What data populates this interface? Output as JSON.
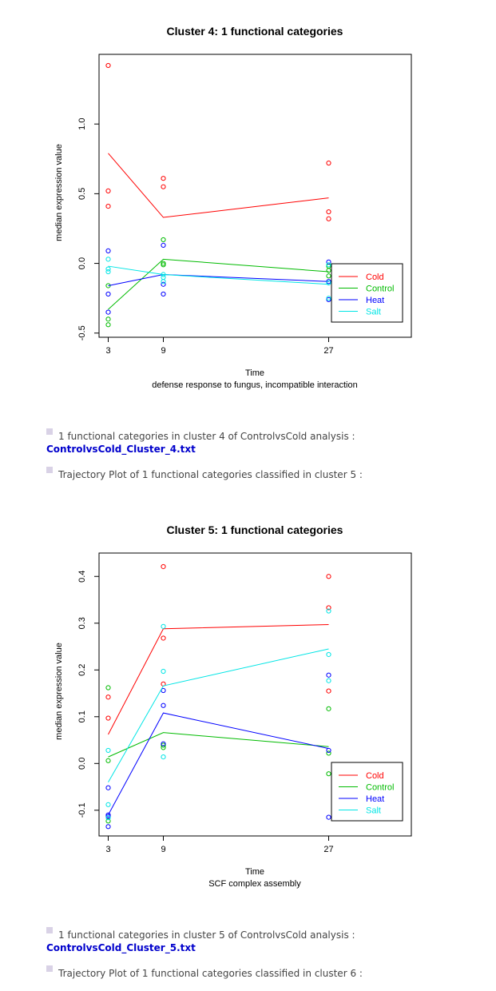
{
  "charts": [
    {
      "title": "Cluster 4: 1 functional categories",
      "xlabel": "Time",
      "subtitle": "defense response to fungus, incompatible interaction",
      "ylabel": "median expression value"
    },
    {
      "title": "Cluster 5: 1 functional categories",
      "xlabel": "Time",
      "subtitle": "SCF complex assembly",
      "ylabel": "median expression value"
    }
  ],
  "items": {
    "c4_summary": "1 functional categories in cluster 4 of ControlvsCold analysis :",
    "c4_link": "ControlvsCold_Cluster_4.txt",
    "c5_intro": "Trajectory Plot of 1 functional categories classified in cluster 5 :",
    "c5_summary": "1 functional categories in cluster 5 of ControlvsCold analysis :",
    "c5_link": "ControlvsCold_Cluster_5.txt",
    "c6_intro": "Trajectory Plot of 1 functional categories classified in cluster 6 :"
  },
  "chart_data": [
    {
      "type": "line",
      "x": [
        3,
        9,
        27
      ],
      "xticks": [
        3,
        9,
        27
      ],
      "xlim": [
        2,
        36
      ],
      "ylim": [
        -0.53,
        1.5
      ],
      "yticks": [
        -0.5,
        0.0,
        0.5,
        1.0
      ],
      "legend": "bottom-right",
      "series": [
        {
          "name": "Cold",
          "color": "#ff0000",
          "line": [
            0.79,
            0.33,
            0.47
          ],
          "points": [
            [
              3,
              1.42
            ],
            [
              3,
              0.52
            ],
            [
              3,
              0.41
            ],
            [
              9,
              0.61
            ],
            [
              9,
              0.55
            ],
            [
              27,
              0.72
            ],
            [
              27,
              0.37
            ],
            [
              27,
              0.32
            ]
          ]
        },
        {
          "name": "Control",
          "color": "#00bb00",
          "line": [
            -0.33,
            0.03,
            -0.06
          ],
          "points": [
            [
              3,
              -0.16
            ],
            [
              3,
              -0.4
            ],
            [
              3,
              -0.44
            ],
            [
              9,
              0.17
            ],
            [
              9,
              0.0
            ],
            [
              9,
              -0.01
            ],
            [
              27,
              -0.02
            ],
            [
              27,
              -0.05
            ],
            [
              27,
              -0.09
            ]
          ]
        },
        {
          "name": "Heat",
          "color": "#0000ff",
          "line": [
            -0.16,
            -0.08,
            -0.13
          ],
          "points": [
            [
              3,
              0.09
            ],
            [
              3,
              -0.22
            ],
            [
              3,
              -0.35
            ],
            [
              9,
              0.13
            ],
            [
              9,
              -0.15
            ],
            [
              9,
              -0.22
            ],
            [
              27,
              0.01
            ],
            [
              27,
              -0.13
            ],
            [
              27,
              -0.26
            ]
          ]
        },
        {
          "name": "Salt",
          "color": "#00e5e5",
          "line": [
            -0.02,
            -0.08,
            -0.15
          ],
          "points": [
            [
              3,
              0.03
            ],
            [
              3,
              -0.04
            ],
            [
              3,
              -0.06
            ],
            [
              9,
              -0.08
            ],
            [
              9,
              -0.1
            ],
            [
              9,
              -0.13
            ],
            [
              27,
              -0.01
            ],
            [
              27,
              -0.14
            ],
            [
              27,
              -0.25
            ]
          ]
        }
      ]
    },
    {
      "type": "line",
      "x": [
        3,
        9,
        27
      ],
      "xticks": [
        3,
        9,
        27
      ],
      "xlim": [
        2,
        36
      ],
      "ylim": [
        -0.155,
        0.45
      ],
      "yticks": [
        -0.1,
        0.0,
        0.1,
        0.2,
        0.3,
        0.4
      ],
      "legend": "bottom-right",
      "series": [
        {
          "name": "Cold",
          "color": "#ff0000",
          "line": [
            0.062,
            0.288,
            0.297
          ],
          "points": [
            [
              3,
              0.142
            ],
            [
              3,
              0.097
            ],
            [
              9,
              0.421
            ],
            [
              9,
              0.268
            ],
            [
              9,
              0.17
            ],
            [
              27,
              0.4
            ],
            [
              27,
              0.333
            ],
            [
              27,
              0.155
            ]
          ]
        },
        {
          "name": "Control",
          "color": "#00bb00",
          "line": [
            0.014,
            0.066,
            0.036
          ],
          "points": [
            [
              3,
              0.162
            ],
            [
              3,
              0.006
            ],
            [
              3,
              -0.123
            ],
            [
              9,
              0.039
            ],
            [
              9,
              0.034
            ],
            [
              27,
              0.117
            ],
            [
              27,
              0.022
            ],
            [
              27,
              -0.022
            ]
          ]
        },
        {
          "name": "Heat",
          "color": "#0000ff",
          "line": [
            -0.11,
            0.108,
            0.032
          ],
          "points": [
            [
              3,
              -0.052
            ],
            [
              3,
              -0.11
            ],
            [
              3,
              -0.113
            ],
            [
              3,
              -0.135
            ],
            [
              9,
              0.156
            ],
            [
              9,
              0.124
            ],
            [
              9,
              0.042
            ],
            [
              27,
              0.189
            ],
            [
              27,
              0.028
            ],
            [
              27,
              -0.115
            ]
          ]
        },
        {
          "name": "Salt",
          "color": "#00e5e5",
          "line": [
            -0.04,
            0.166,
            0.245
          ],
          "points": [
            [
              3,
              0.028
            ],
            [
              3,
              -0.088
            ],
            [
              3,
              -0.116
            ],
            [
              9,
              0.293
            ],
            [
              9,
              0.197
            ],
            [
              9,
              0.014
            ],
            [
              27,
              0.326
            ],
            [
              27,
              0.233
            ],
            [
              27,
              0.177
            ]
          ]
        }
      ]
    }
  ]
}
